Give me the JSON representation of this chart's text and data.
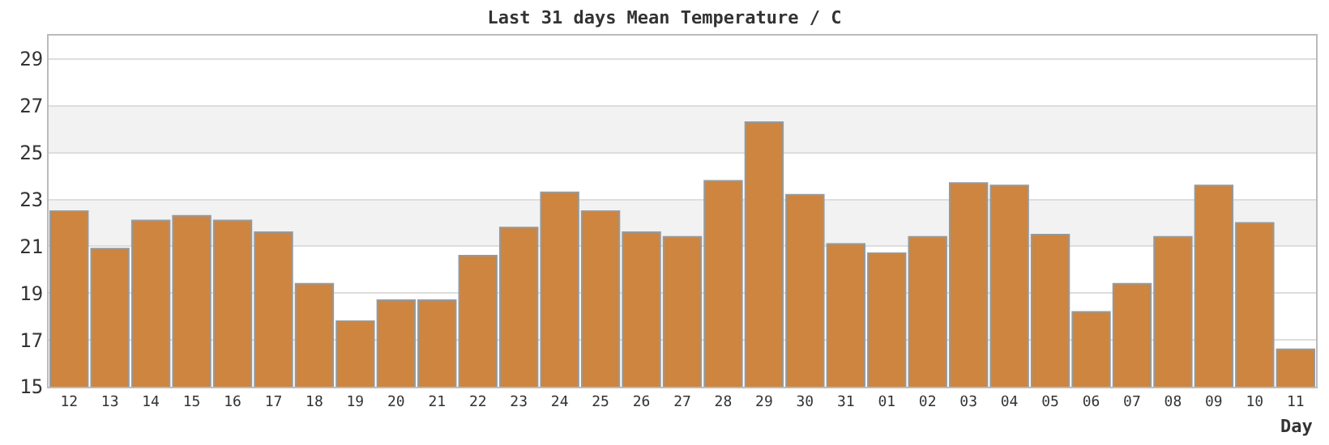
{
  "chart_data": {
    "type": "bar",
    "title": "Last 31 days Mean Temperature / C",
    "xlabel": "Day",
    "categories": [
      "12",
      "13",
      "14",
      "15",
      "16",
      "17",
      "18",
      "19",
      "20",
      "21",
      "22",
      "23",
      "24",
      "25",
      "26",
      "27",
      "28",
      "29",
      "30",
      "31",
      "01",
      "02",
      "03",
      "04",
      "05",
      "06",
      "07",
      "08",
      "09",
      "10",
      "11"
    ],
    "values": [
      22.5,
      20.9,
      22.1,
      22.3,
      22.1,
      21.6,
      19.4,
      17.8,
      18.7,
      18.7,
      20.6,
      21.8,
      23.3,
      22.5,
      21.6,
      21.4,
      23.8,
      26.3,
      23.2,
      21.1,
      20.7,
      21.4,
      23.7,
      23.6,
      21.5,
      18.2,
      19.4,
      21.4,
      23.6,
      22.0,
      16.6
    ],
    "color": "#cd853f",
    "ylim": [
      15,
      30
    ],
    "yticks": [
      15,
      17,
      19,
      21,
      23,
      25,
      27,
      29
    ],
    "grid": "y",
    "bands": [
      {
        "axis": "y",
        "from": 21,
        "to": 23,
        "color": "#f2f2f2"
      },
      {
        "axis": "y",
        "from": 25,
        "to": 27,
        "color": "#f2f2f2"
      }
    ]
  }
}
